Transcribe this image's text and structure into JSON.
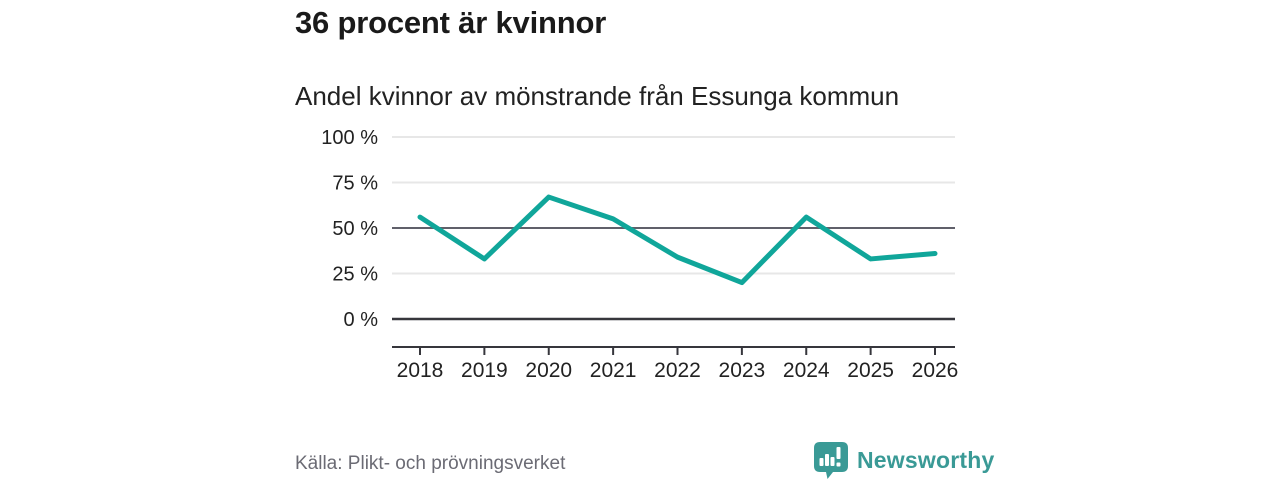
{
  "header": {
    "title": "36 procent är kvinnor",
    "subtitle": "Andel kvinnor av mönstrande från Essunga kommun"
  },
  "footer": {
    "source": "Källa: Plikt- och prövningsverket",
    "logo_text": "Newsworthy",
    "logo_icon": "speech-bubble-bar-chart-icon"
  },
  "colors": {
    "line": "#10a69a",
    "logo_teal": "#3a9a96",
    "axis_dark": "#36363c",
    "grid_mid": "#60606a",
    "grid_light": "#e7e7e7",
    "tick_text": "#222222",
    "source_text": "#6b6b74",
    "title_text": "#1a1a1a"
  },
  "chart_data": {
    "type": "line",
    "title": "36 procent är kvinnor",
    "subtitle": "Andel kvinnor av mönstrande från Essunga kommun",
    "x": [
      2018,
      2019,
      2020,
      2021,
      2022,
      2023,
      2024,
      2025,
      2026
    ],
    "values": [
      56,
      33,
      67,
      55,
      34,
      20,
      56,
      33,
      36
    ],
    "series_name": "Andel kvinnor av mönstrande",
    "xlabel": "",
    "ylabel": "",
    "ylim": [
      0,
      100
    ],
    "yticks": [
      0,
      25,
      50,
      75,
      100
    ],
    "ytick_suffix": " %",
    "grid": true,
    "legend": "none",
    "emphasized_gridlines": [
      0,
      50
    ]
  }
}
